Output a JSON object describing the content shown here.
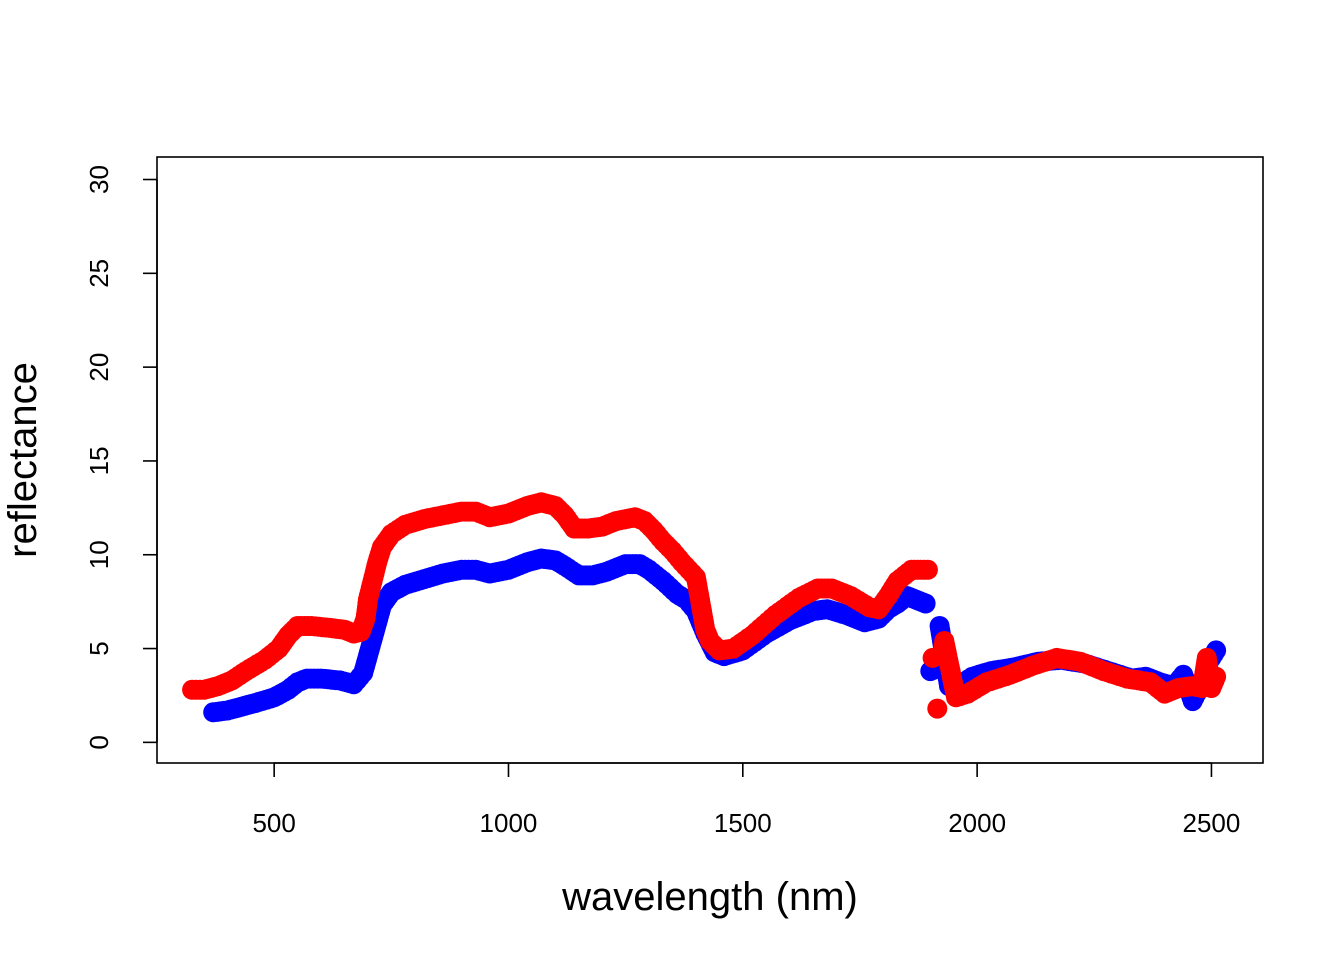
{
  "chart_data": {
    "type": "scatter",
    "title": "",
    "xlabel": "wavelength (nm)",
    "ylabel": "reflectance",
    "xlim": [
      250,
      2610
    ],
    "ylim": [
      -1.1,
      31.2
    ],
    "x_ticks": [
      500,
      1000,
      1500,
      2000,
      2500
    ],
    "y_ticks": [
      0,
      5,
      10,
      15,
      20,
      25,
      30
    ],
    "x_tick_labels": [
      "500",
      "1000",
      "1500",
      "2000",
      "2500"
    ],
    "y_tick_labels": [
      "0",
      "5",
      "10",
      "15",
      "20",
      "25",
      "30"
    ],
    "grid": false,
    "legend": "none",
    "series": [
      {
        "color": "#0000ff",
        "keypoints": [
          [
            370,
            1.6
          ],
          [
            400,
            1.7
          ],
          [
            430,
            1.9
          ],
          [
            460,
            2.1
          ],
          [
            500,
            2.4
          ],
          [
            530,
            2.8
          ],
          [
            550,
            3.2
          ],
          [
            570,
            3.4
          ],
          [
            600,
            3.4
          ],
          [
            640,
            3.3
          ],
          [
            670,
            3.1
          ],
          [
            690,
            3.7
          ],
          [
            700,
            4.6
          ],
          [
            710,
            5.5
          ],
          [
            720,
            6.4
          ],
          [
            730,
            7.3
          ],
          [
            750,
            8.0
          ],
          [
            780,
            8.4
          ],
          [
            820,
            8.7
          ],
          [
            860,
            9.0
          ],
          [
            900,
            9.2
          ],
          [
            930,
            9.2
          ],
          [
            960,
            9.0
          ],
          [
            1000,
            9.2
          ],
          [
            1040,
            9.6
          ],
          [
            1070,
            9.8
          ],
          [
            1100,
            9.7
          ],
          [
            1120,
            9.4
          ],
          [
            1150,
            8.9
          ],
          [
            1180,
            8.9
          ],
          [
            1210,
            9.1
          ],
          [
            1250,
            9.5
          ],
          [
            1280,
            9.5
          ],
          [
            1300,
            9.2
          ],
          [
            1330,
            8.6
          ],
          [
            1360,
            7.9
          ],
          [
            1380,
            7.6
          ],
          [
            1400,
            7.0
          ],
          [
            1420,
            5.8
          ],
          [
            1440,
            4.8
          ],
          [
            1460,
            4.6
          ],
          [
            1500,
            4.9
          ],
          [
            1550,
            5.8
          ],
          [
            1600,
            6.5
          ],
          [
            1650,
            7.0
          ],
          [
            1680,
            7.1
          ],
          [
            1720,
            6.8
          ],
          [
            1760,
            6.4
          ],
          [
            1790,
            6.6
          ],
          [
            1810,
            7.1
          ],
          [
            1830,
            7.4
          ],
          [
            1850,
            7.8
          ],
          [
            1870,
            7.6
          ],
          [
            1890,
            7.4
          ],
          [
            1900,
            3.8
          ],
          [
            1910,
            3.9
          ],
          [
            1920,
            6.2
          ],
          [
            1930,
            4.6
          ],
          [
            1940,
            3.0
          ],
          [
            1960,
            3.0
          ],
          [
            1990,
            3.5
          ],
          [
            2030,
            3.8
          ],
          [
            2080,
            4.0
          ],
          [
            2130,
            4.3
          ],
          [
            2180,
            4.4
          ],
          [
            2230,
            4.2
          ],
          [
            2280,
            3.8
          ],
          [
            2330,
            3.4
          ],
          [
            2360,
            3.5
          ],
          [
            2390,
            3.2
          ],
          [
            2420,
            3.0
          ],
          [
            2440,
            3.6
          ],
          [
            2460,
            2.2
          ],
          [
            2480,
            3.2
          ],
          [
            2495,
            4.3
          ],
          [
            2510,
            4.9
          ]
        ]
      },
      {
        "color": "#ff0000",
        "keypoints": [
          [
            325,
            2.8
          ],
          [
            350,
            2.8
          ],
          [
            380,
            3.0
          ],
          [
            410,
            3.3
          ],
          [
            440,
            3.8
          ],
          [
            480,
            4.4
          ],
          [
            510,
            5.0
          ],
          [
            530,
            5.7
          ],
          [
            550,
            6.2
          ],
          [
            580,
            6.2
          ],
          [
            620,
            6.1
          ],
          [
            650,
            6.0
          ],
          [
            670,
            5.8
          ],
          [
            685,
            5.9
          ],
          [
            695,
            6.6
          ],
          [
            700,
            7.6
          ],
          [
            710,
            8.6
          ],
          [
            720,
            9.6
          ],
          [
            730,
            10.4
          ],
          [
            750,
            11.1
          ],
          [
            780,
            11.6
          ],
          [
            820,
            11.9
          ],
          [
            860,
            12.1
          ],
          [
            900,
            12.3
          ],
          [
            930,
            12.3
          ],
          [
            960,
            12.0
          ],
          [
            1000,
            12.2
          ],
          [
            1040,
            12.6
          ],
          [
            1070,
            12.8
          ],
          [
            1100,
            12.6
          ],
          [
            1120,
            12.1
          ],
          [
            1140,
            11.4
          ],
          [
            1170,
            11.4
          ],
          [
            1200,
            11.5
          ],
          [
            1230,
            11.8
          ],
          [
            1270,
            12.0
          ],
          [
            1290,
            11.8
          ],
          [
            1310,
            11.3
          ],
          [
            1330,
            10.7
          ],
          [
            1350,
            10.2
          ],
          [
            1370,
            9.6
          ],
          [
            1400,
            8.8
          ],
          [
            1410,
            7.4
          ],
          [
            1420,
            6.0
          ],
          [
            1430,
            5.4
          ],
          [
            1450,
            4.9
          ],
          [
            1480,
            5.0
          ],
          [
            1520,
            5.7
          ],
          [
            1570,
            6.8
          ],
          [
            1620,
            7.7
          ],
          [
            1660,
            8.2
          ],
          [
            1690,
            8.2
          ],
          [
            1730,
            7.8
          ],
          [
            1770,
            7.2
          ],
          [
            1790,
            7.1
          ],
          [
            1810,
            7.8
          ],
          [
            1830,
            8.6
          ],
          [
            1860,
            9.2
          ],
          [
            1880,
            9.2
          ],
          [
            1895,
            9.2
          ],
          [
            1905,
            4.5
          ],
          [
            1915,
            1.8
          ],
          [
            1925,
            4.6
          ],
          [
            1930,
            5.4
          ],
          [
            1945,
            3.6
          ],
          [
            1955,
            2.4
          ],
          [
            1980,
            2.6
          ],
          [
            2020,
            3.2
          ],
          [
            2070,
            3.6
          ],
          [
            2120,
            4.1
          ],
          [
            2170,
            4.5
          ],
          [
            2220,
            4.3
          ],
          [
            2270,
            3.8
          ],
          [
            2320,
            3.4
          ],
          [
            2370,
            3.2
          ],
          [
            2400,
            2.6
          ],
          [
            2430,
            2.9
          ],
          [
            2460,
            3.0
          ],
          [
            2480,
            2.9
          ],
          [
            2490,
            4.5
          ],
          [
            2500,
            2.9
          ],
          [
            2510,
            3.5
          ]
        ]
      }
    ]
  }
}
